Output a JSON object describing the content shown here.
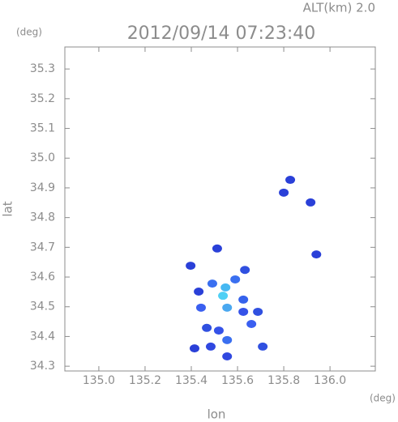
{
  "chart_data": {
    "type": "scatter",
    "title": "2012/09/14 07:23:40",
    "subtitle": "ALT(km) 2.0",
    "y_unit": "(deg)",
    "x_unit": "(deg)",
    "x_label": "lon",
    "y_label": "lat",
    "xlim": [
      134.853,
      136.196
    ],
    "ylim": [
      34.284,
      35.374
    ],
    "xticks": [
      {
        "value": 135.0,
        "label": "135.0"
      },
      135.2,
      135.4,
      135.6,
      135.8,
      {
        "value": 136.0,
        "label": "136.0"
      }
    ],
    "yticks": [
      34.3,
      34.4,
      34.5,
      34.6,
      34.7,
      34.8,
      34.9,
      {
        "value": 35.0,
        "label": "35.0"
      },
      35.1,
      35.2,
      35.3
    ],
    "x": [
      135.537,
      135.548,
      135.555,
      135.59,
      135.625,
      135.66,
      135.625,
      135.442,
      135.467,
      135.519,
      135.414,
      135.484,
      135.555,
      135.555,
      135.491,
      135.688,
      135.709,
      135.8,
      135.828,
      135.916,
      135.941,
      135.512,
      135.397,
      135.632,
      135.432
    ],
    "values": [
      34.537,
      34.565,
      34.497,
      34.592,
      34.483,
      34.442,
      34.524,
      34.497,
      34.429,
      34.42,
      34.36,
      34.366,
      34.388,
      34.333,
      34.578,
      34.483,
      34.366,
      34.884,
      34.927,
      34.851,
      34.676,
      34.696,
      34.638,
      34.624,
      34.551
    ],
    "colors": [
      "#4fd0f5",
      "#46b8f2",
      "#4aa8f0",
      "#3a6ff0",
      "#3552e8",
      "#3a5ff0",
      "#3562ec",
      "#3a5ff0",
      "#3050e0",
      "#3552e8",
      "#2a40d8",
      "#3048e0",
      "#3a6ff0",
      "#3048e0",
      "#3a6ff0",
      "#3050e0",
      "#3050e0",
      "#2a40d8",
      "#2a40d8",
      "#2a40d8",
      "#2a40d8",
      "#2a40d8",
      "#2a40d8",
      "#3050e0",
      "#2a40d8"
    ]
  }
}
